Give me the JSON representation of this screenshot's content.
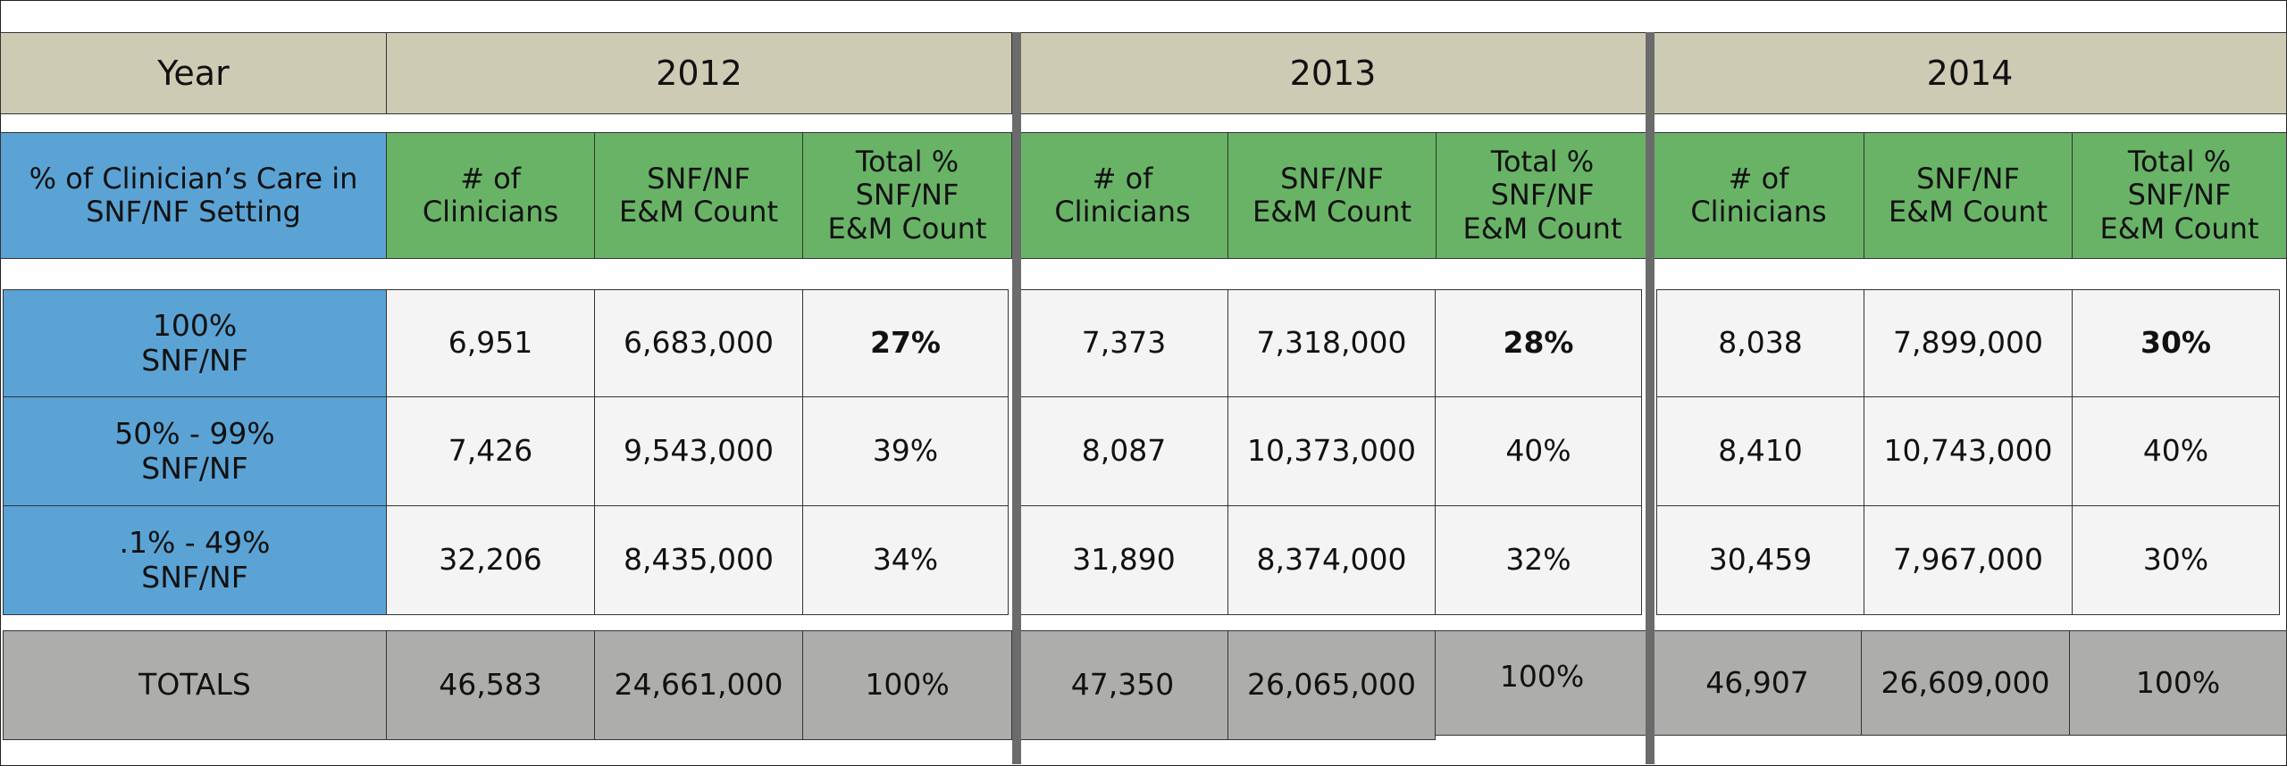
{
  "table": {
    "year_label": "Year",
    "years": [
      "2012",
      "2013",
      "2014"
    ],
    "category_header": "% of Clinician’s Care in\nSNF/NF Setting",
    "column_headers": [
      "# of\nClinicians",
      "SNF/NF\nE&M Count",
      "Total %\nSNF/NF\nE&M Count"
    ],
    "rows": [
      {
        "label": "100%\nSNF/NF",
        "values": [
          [
            "6,951",
            "6,683,000",
            "27%"
          ],
          [
            "7,373",
            "7,318,000",
            "28%"
          ],
          [
            "8,038",
            "7,899,000",
            "30%"
          ]
        ]
      },
      {
        "label": "50% - 99%\nSNF/NF",
        "values": [
          [
            "7,426",
            "9,543,000",
            "39%"
          ],
          [
            "8,087",
            "10,373,000",
            "40%"
          ],
          [
            "8,410",
            "10,743,000",
            "40%"
          ]
        ]
      },
      {
        "label": ".1% - 49%\nSNF/NF",
        "values": [
          [
            "32,206",
            "8,435,000",
            "34%"
          ],
          [
            "31,890",
            "8,374,000",
            "32%"
          ],
          [
            "30,459",
            "7,967,000",
            "30%"
          ]
        ]
      }
    ],
    "totals": {
      "label": "TOTALS",
      "values": [
        [
          "46,583",
          "24,661,000",
          "100%"
        ],
        [
          "47,350",
          "26,065,000",
          "100%"
        ],
        [
          "46,907",
          "26,609,000",
          "100%"
        ]
      ]
    }
  }
}
